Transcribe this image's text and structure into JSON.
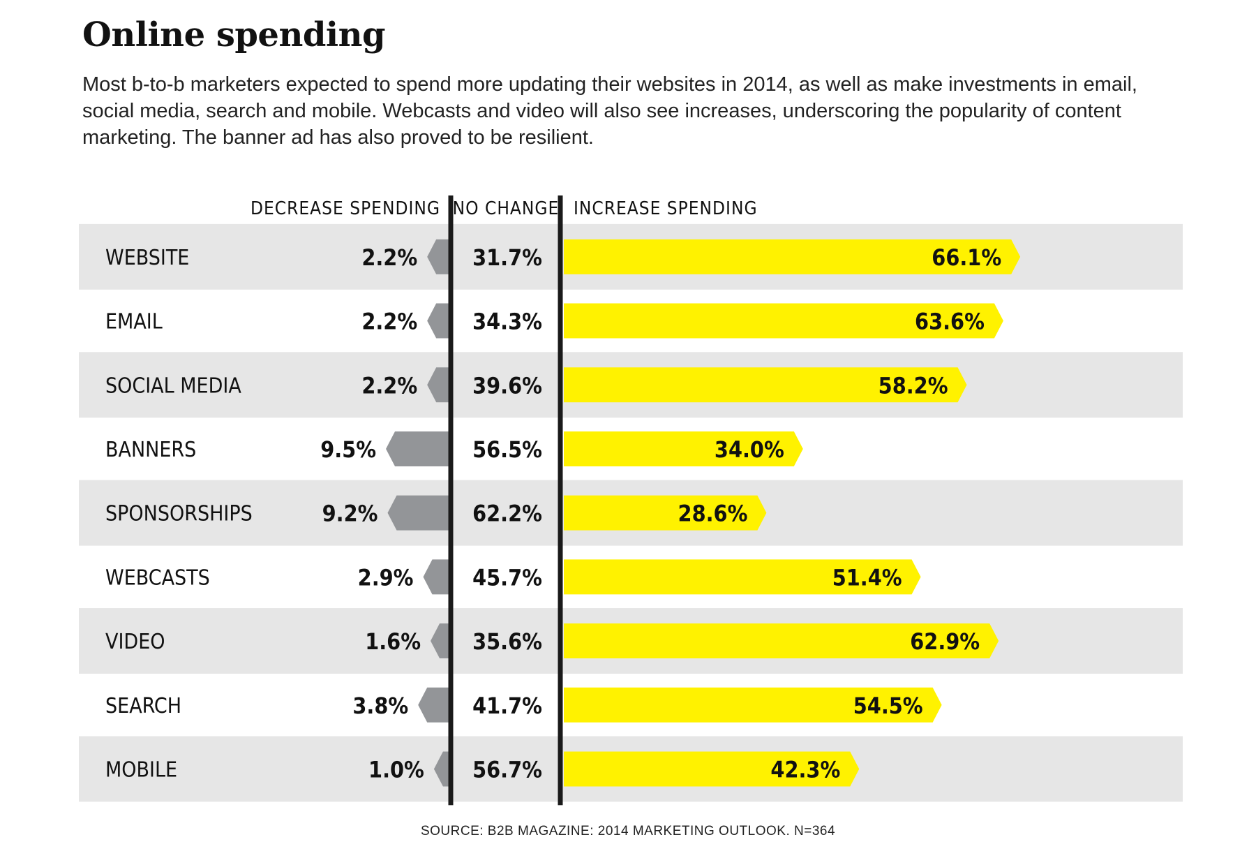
{
  "title": "Online spending",
  "subtitle": "Most b-to-b marketers expected to spend more updating their websites in 2014, as well as make investments in email, social media, search and mobile. Webcasts and video will also see increases, underscoring the popularity of content marketing. The banner ad has also proved to be resilient.",
  "source": "SOURCE: B2B MAGAZINE: 2014 MARKETING OUTLOOK. N=364",
  "colors": {
    "row_band": "#e6e6e6",
    "decrease": "#939598",
    "increase": "#fff200",
    "divider": "#1a1a1a"
  },
  "chart_data": {
    "type": "bar",
    "orientation": "horizontal",
    "stacked": "diverging",
    "column_headers": [
      "DECREASE SPENDING",
      "NO CHANGE",
      "INCREASE SPENDING"
    ],
    "categories": [
      "WEBSITE",
      "EMAIL",
      "SOCIAL MEDIA",
      "BANNERS",
      "SPONSORSHIPS",
      "WEBCASTS",
      "VIDEO",
      "SEARCH",
      "MOBILE"
    ],
    "series": [
      {
        "name": "DECREASE SPENDING",
        "values": [
          2.2,
          2.2,
          2.2,
          9.5,
          9.2,
          2.9,
          1.6,
          3.8,
          1.0
        ],
        "labels": [
          "2.2%",
          "2.2%",
          "2.2%",
          "9.5%",
          "9.2%",
          "2.9%",
          "1.6%",
          "3.8%",
          "1.0%"
        ]
      },
      {
        "name": "NO CHANGE",
        "values": [
          31.7,
          34.3,
          39.6,
          56.5,
          62.2,
          45.7,
          35.6,
          41.7,
          56.7
        ],
        "labels": [
          "31.7%",
          "34.3%",
          "39.6%",
          "56.5%",
          "62.2%",
          "45.7%",
          "35.6%",
          "41.7%",
          "56.7%"
        ]
      },
      {
        "name": "INCREASE SPENDING",
        "values": [
          66.1,
          63.6,
          58.2,
          34.0,
          28.6,
          51.4,
          62.9,
          54.5,
          42.3
        ],
        "labels": [
          "66.1%",
          "63.6%",
          "58.2%",
          "34.0%",
          "28.6%",
          "51.4%",
          "62.9%",
          "54.5%",
          "42.3%"
        ]
      }
    ],
    "unit": "%"
  }
}
